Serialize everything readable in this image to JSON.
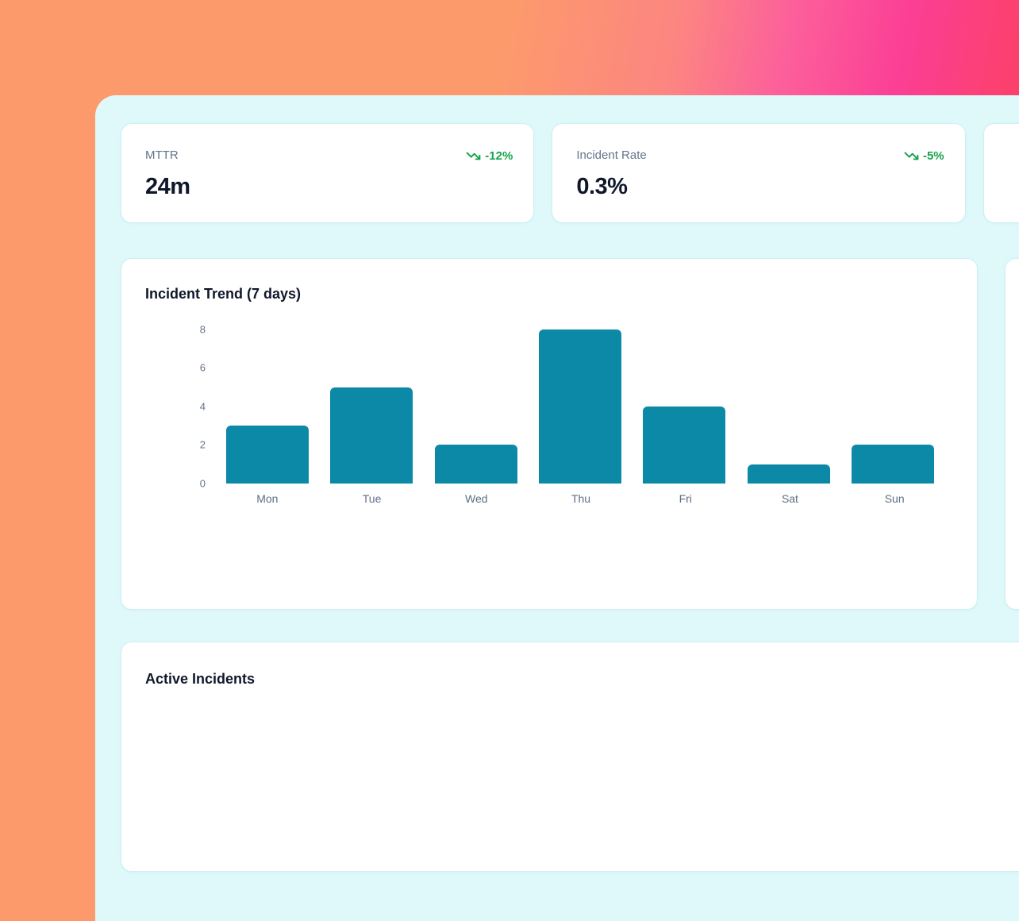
{
  "theme": {
    "bg_gradient": [
      "#FD9A6C",
      "#FC5F9B",
      "#FB3F95",
      "#FD4350"
    ],
    "panel_bg": "#DFF9FA",
    "card_bg": "#FFFFFF",
    "card_border": "#CDEFF2",
    "bar_color": "#0B89A6",
    "positive_green": "#16A34A",
    "heading_color": "#0F172A",
    "muted_color": "#64748B"
  },
  "stats": {
    "cards": [
      {
        "label": "MTTR",
        "value": "24m",
        "delta": "-12%",
        "trend_icon": "trending-down-icon"
      },
      {
        "label": "Incident Rate",
        "value": "0.3%",
        "delta": "-5%",
        "trend_icon": "trending-down-icon"
      }
    ]
  },
  "chart_card": {
    "title": "Incident Trend (7 days)"
  },
  "chart_data": {
    "type": "bar",
    "title": "Incident Trend (7 days)",
    "categories": [
      "Mon",
      "Tue",
      "Wed",
      "Thu",
      "Fri",
      "Sat",
      "Sun"
    ],
    "values": [
      3,
      5,
      2,
      8,
      4,
      1,
      2
    ],
    "xlabel": "",
    "ylabel": "",
    "ylim": [
      0,
      8
    ],
    "yticks": [
      0,
      2,
      4,
      6,
      8
    ],
    "grid": false,
    "legend": false,
    "bar_color": "#0B89A6"
  },
  "incidents_card": {
    "title": "Active Incidents"
  }
}
